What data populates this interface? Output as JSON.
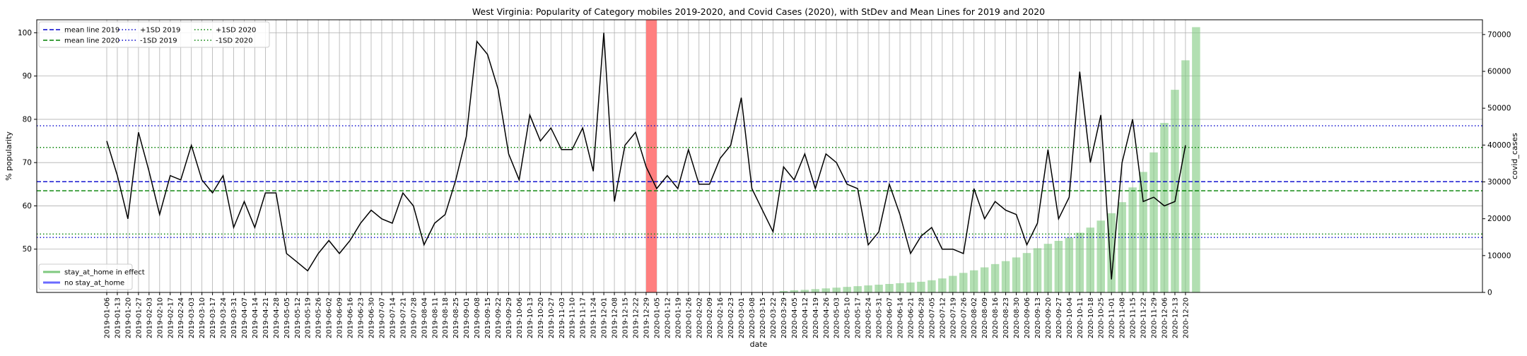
{
  "chart_data": {
    "type": "line",
    "title": "West Virginia: Popularity of Category mobiles 2019-2020, and Covid Cases (2020), with StDev and Mean Lines for 2019 and 2020",
    "xlabel": "date",
    "ylabel": "% popularity",
    "y2label": "covid_cases",
    "ylim": [
      40,
      103
    ],
    "y2lim": [
      0,
      74000
    ],
    "yticks": [
      50,
      60,
      70,
      80,
      90,
      100
    ],
    "y2ticks": [
      0,
      10000,
      20000,
      30000,
      40000,
      50000,
      60000,
      70000
    ],
    "grid": true,
    "legend_placement": "top-left",
    "x": [
      "2019-01-06",
      "2019-01-13",
      "2019-01-20",
      "2019-01-27",
      "2019-02-03",
      "2019-02-10",
      "2019-02-17",
      "2019-02-24",
      "2019-03-03",
      "2019-03-10",
      "2019-03-17",
      "2019-03-24",
      "2019-03-31",
      "2019-04-07",
      "2019-04-14",
      "2019-04-21",
      "2019-04-28",
      "2019-05-05",
      "2019-05-12",
      "2019-05-19",
      "2019-05-26",
      "2019-06-02",
      "2019-06-09",
      "2019-06-16",
      "2019-06-23",
      "2019-06-30",
      "2019-07-07",
      "2019-07-14",
      "2019-07-21",
      "2019-07-28",
      "2019-08-04",
      "2019-08-11",
      "2019-08-18",
      "2019-08-25",
      "2019-09-01",
      "2019-09-08",
      "2019-09-15",
      "2019-09-22",
      "2019-09-29",
      "2019-10-06",
      "2019-10-13",
      "2019-10-20",
      "2019-10-27",
      "2019-11-03",
      "2019-11-10",
      "2019-11-17",
      "2019-11-24",
      "2019-12-01",
      "2019-12-08",
      "2019-12-15",
      "2019-12-22",
      "2019-12-29",
      "2020-01-05",
      "2020-01-12",
      "2020-01-19",
      "2020-01-26",
      "2020-02-02",
      "2020-02-09",
      "2020-02-16",
      "2020-02-23",
      "2020-03-01",
      "2020-03-08",
      "2020-03-15",
      "2020-03-22",
      "2020-03-29",
      "2020-04-05",
      "2020-04-12",
      "2020-04-19",
      "2020-04-26",
      "2020-05-03",
      "2020-05-10",
      "2020-05-17",
      "2020-05-24",
      "2020-05-31",
      "2020-06-07",
      "2020-06-14",
      "2020-06-21",
      "2020-06-28",
      "2020-07-05",
      "2020-07-12",
      "2020-07-19",
      "2020-07-26",
      "2020-08-02",
      "2020-08-09",
      "2020-08-16",
      "2020-08-23",
      "2020-08-30",
      "2020-09-06",
      "2020-09-13",
      "2020-09-20",
      "2020-09-27",
      "2020-10-04",
      "2020-10-11",
      "2020-10-18",
      "2020-10-25",
      "2020-11-01",
      "2020-11-08",
      "2020-11-15",
      "2020-11-22",
      "2020-11-29",
      "2020-12-06",
      "2020-12-13",
      "2020-12-20"
    ],
    "series": [
      {
        "name": "popularity",
        "color": "#000000",
        "values": [
          75,
          67,
          57,
          77,
          68,
          58,
          67,
          66,
          74,
          66,
          63,
          67,
          55,
          61,
          55,
          63,
          63,
          49,
          47,
          45,
          49,
          52,
          49,
          52,
          56,
          59,
          57,
          56,
          63,
          60,
          51,
          56,
          58,
          66,
          76,
          98,
          95,
          87,
          72,
          66,
          81,
          75,
          78,
          73,
          73,
          78,
          68,
          100,
          61,
          74,
          77,
          69,
          64,
          67,
          64,
          73,
          65,
          65,
          71,
          74,
          85,
          64,
          59,
          54,
          69,
          66,
          72,
          64,
          72,
          70,
          65,
          64,
          51,
          54,
          65,
          58,
          49,
          53,
          55,
          50,
          50,
          49,
          64,
          57,
          61,
          59,
          58,
          51,
          56,
          73,
          57,
          62,
          91,
          70,
          81,
          43,
          70,
          80,
          61,
          62,
          60,
          61,
          74
        ]
      }
    ],
    "covid_cases": {
      "name": "covid_cases",
      "color": "#7fc97f",
      "values": [
        0,
        0,
        0,
        0,
        0,
        0,
        0,
        0,
        0,
        0,
        0,
        0,
        0,
        0,
        0,
        0,
        0,
        0,
        0,
        0,
        0,
        0,
        0,
        0,
        0,
        0,
        0,
        0,
        0,
        0,
        0,
        0,
        0,
        0,
        0,
        0,
        0,
        0,
        0,
        0,
        0,
        0,
        0,
        0,
        0,
        0,
        0,
        0,
        0,
        0,
        0,
        0,
        0,
        0,
        0,
        0,
        0,
        0,
        0,
        0,
        0,
        0,
        0,
        100,
        400,
        600,
        700,
        900,
        1100,
        1300,
        1500,
        1700,
        1900,
        2100,
        2300,
        2500,
        2700,
        2900,
        3300,
        3800,
        4500,
        5300,
        6000,
        6800,
        7700,
        8500,
        9500,
        10700,
        12000,
        13200,
        14000,
        14900,
        16200,
        17600,
        19500,
        21500,
        24500,
        28500,
        32700,
        38000,
        46000,
        55000,
        63000,
        72000
      ]
    },
    "reference_lines": [
      {
        "name": "mean line 2019",
        "value": 65.6,
        "color": "#0000cc",
        "style": "dashed"
      },
      {
        "name": "mean line 2020",
        "value": 63.5,
        "color": "#008000",
        "style": "dashed"
      },
      {
        "name": "+1SD 2019",
        "value": 78.5,
        "color": "#0000cc",
        "style": "dotted"
      },
      {
        "name": "-1SD 2019",
        "value": 52.7,
        "color": "#0000cc",
        "style": "dotted"
      },
      {
        "name": "+1SD 2020",
        "value": 73.5,
        "color": "#008000",
        "style": "dotted"
      },
      {
        "name": "-1SD 2020",
        "value": 53.5,
        "color": "#008000",
        "style": "dotted"
      }
    ],
    "highlight_span": {
      "from": "2019-12-29",
      "to": "2020-01-05",
      "color": "#ff7f7f"
    },
    "legend_top": [
      {
        "label": "mean line 2019",
        "color": "#0000cc",
        "style": "dashed"
      },
      {
        "label": "+1SD 2019",
        "color": "#0000cc",
        "style": "dotted"
      },
      {
        "label": "+1SD 2020",
        "color": "#008000",
        "style": "dotted"
      },
      {
        "label": "mean line 2020",
        "color": "#008000",
        "style": "dashed"
      },
      {
        "label": "-1SD 2019",
        "color": "#0000cc",
        "style": "dotted"
      },
      {
        "label": "-1SD 2020",
        "color": "#008000",
        "style": "dotted"
      }
    ],
    "legend_bottom": [
      {
        "label": "stay_at_home in effect",
        "color": "#7fc97f"
      },
      {
        "label": "no stay_at_home",
        "color": "#6a6aff"
      }
    ]
  }
}
